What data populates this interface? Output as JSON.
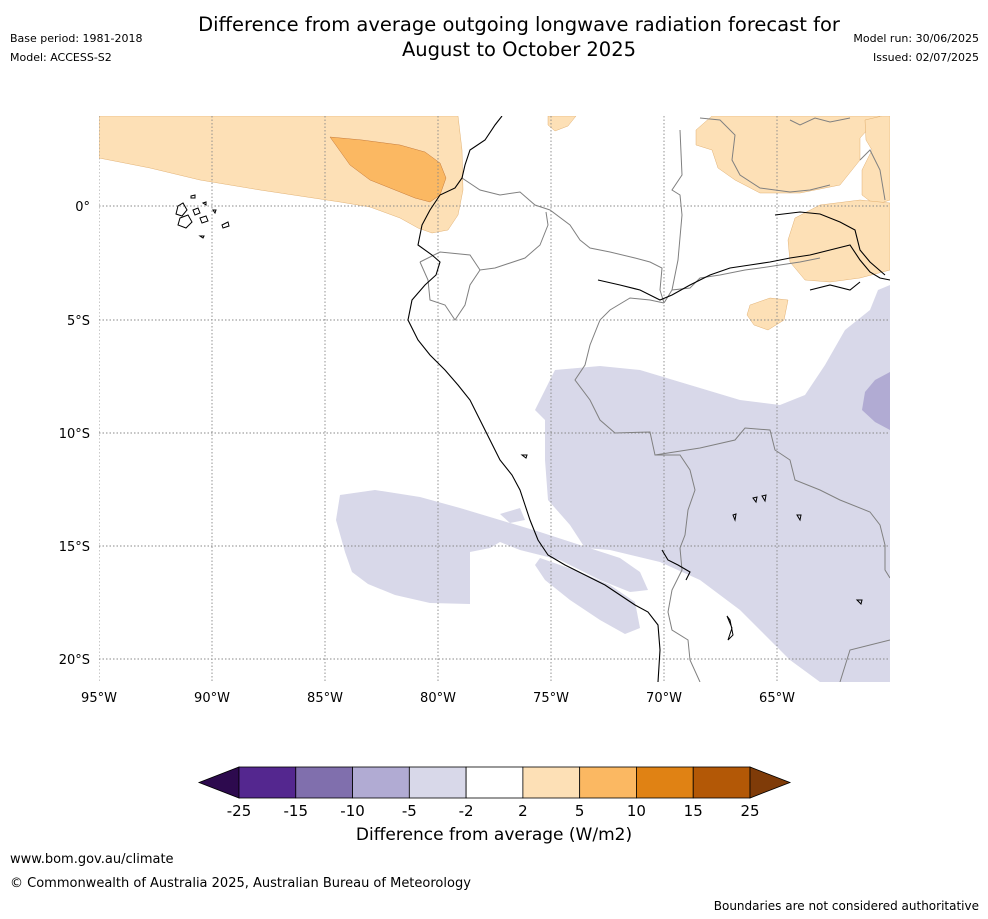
{
  "header": {
    "title_line1": "Difference from average outgoing longwave radiation forecast for",
    "title_line2": "August to October 2025",
    "base_period": "Base period: 1981-2018",
    "model": "Model: ACCESS-S2",
    "model_run": "Model run: 30/06/2025",
    "issued": "Issued: 02/07/2025"
  },
  "map": {
    "lat_labels": [
      "0°",
      "5°S",
      "10°S",
      "15°S",
      "20°S"
    ],
    "lon_labels": [
      "95°W",
      "90°W",
      "85°W",
      "80°W",
      "75°W",
      "70°W",
      "65°W"
    ],
    "colors": {
      "ocean_land": "#ffffff",
      "pos_light": "#fde0b6",
      "pos_med": "#fbb862",
      "neg_light": "#d8d8e9",
      "neg_med": "#b1abd3",
      "coastline": "#000000",
      "border": "#808080",
      "grid": "#888888"
    }
  },
  "colorbar": {
    "title": "Difference from average (W/m2)",
    "ticks": [
      "-25",
      "-15",
      "-10",
      "-5",
      "-2",
      "2",
      "5",
      "10",
      "15",
      "25"
    ],
    "colors": [
      "#2d0a4e",
      "#54278f",
      "#806fad",
      "#b1abd3",
      "#d8d8e9",
      "#ffffff",
      "#fde0b6",
      "#fbb862",
      "#e08214",
      "#b35806",
      "#7f3b08"
    ]
  },
  "footer": {
    "url": "www.bom.gov.au/climate",
    "copyright": "© Commonwealth of Australia 2025, Australian Bureau of Meteorology",
    "disclaimer": "Boundaries are not considered authoritative"
  }
}
